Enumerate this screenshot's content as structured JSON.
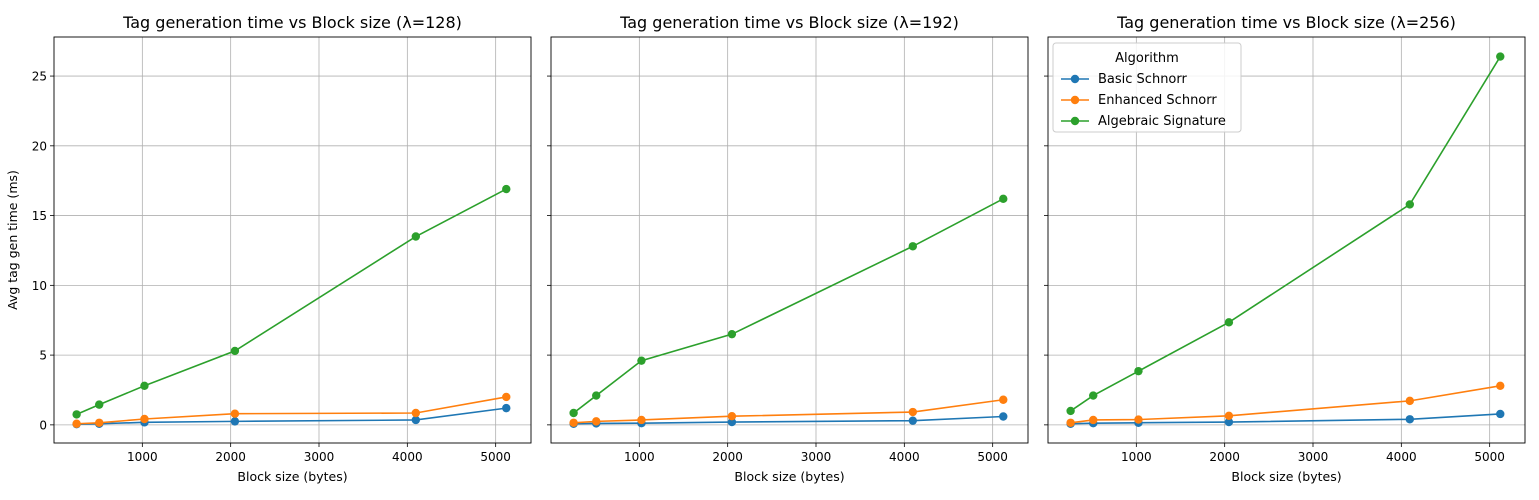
{
  "chart_data": [
    {
      "type": "line",
      "title": "Tag generation time vs Block size (λ=128)",
      "xlabel": "Block size (bytes)",
      "ylabel": "Avg tag gen time (ms)",
      "xlim": [
        0,
        5400
      ],
      "ylim": [
        -1.3,
        27.8
      ],
      "x_ticks": [
        1000,
        2000,
        3000,
        4000,
        5000
      ],
      "y_ticks": [
        0,
        5,
        10,
        15,
        20,
        25
      ],
      "grid": true,
      "x": [
        256,
        512,
        1024,
        2048,
        4096,
        5120
      ],
      "series": [
        {
          "name": "Basic Schnorr",
          "color": "#1f77b4",
          "values": [
            0.05,
            0.08,
            0.18,
            0.25,
            0.35,
            1.2
          ]
        },
        {
          "name": "Enhanced Schnorr",
          "color": "#ff7f0e",
          "values": [
            0.08,
            0.15,
            0.42,
            0.8,
            0.85,
            2.0
          ]
        },
        {
          "name": "Algebraic Signature",
          "color": "#2ca02c",
          "values": [
            0.75,
            1.45,
            2.8,
            5.3,
            13.5,
            16.9
          ]
        }
      ]
    },
    {
      "type": "line",
      "title": "Tag generation time vs Block size (λ=192)",
      "xlabel": "Block size (bytes)",
      "xlim": [
        0,
        5400
      ],
      "ylim": [
        -1.3,
        27.8
      ],
      "x_ticks": [
        1000,
        2000,
        3000,
        4000,
        5000
      ],
      "grid": true,
      "x": [
        256,
        512,
        1024,
        2048,
        4096,
        5120
      ],
      "series": [
        {
          "name": "Basic Schnorr",
          "color": "#1f77b4",
          "values": [
            0.08,
            0.1,
            0.12,
            0.2,
            0.3,
            0.6
          ]
        },
        {
          "name": "Enhanced Schnorr",
          "color": "#ff7f0e",
          "values": [
            0.15,
            0.25,
            0.35,
            0.62,
            0.92,
            1.8
          ]
        },
        {
          "name": "Algebraic Signature",
          "color": "#2ca02c",
          "values": [
            0.85,
            2.1,
            4.6,
            6.5,
            12.8,
            16.2
          ]
        }
      ]
    },
    {
      "type": "line",
      "title": "Tag generation time vs Block size (λ=256)",
      "xlabel": "Block size (bytes)",
      "xlim": [
        0,
        5400
      ],
      "ylim": [
        -1.3,
        27.8
      ],
      "x_ticks": [
        1000,
        2000,
        3000,
        4000,
        5000
      ],
      "grid": true,
      "legend": {
        "title": "Algorithm",
        "placement": "upper-left"
      },
      "x": [
        256,
        512,
        1024,
        2048,
        4096,
        5120
      ],
      "series": [
        {
          "name": "Basic Schnorr",
          "color": "#1f77b4",
          "values": [
            0.08,
            0.12,
            0.15,
            0.2,
            0.4,
            0.78
          ]
        },
        {
          "name": "Enhanced Schnorr",
          "color": "#ff7f0e",
          "values": [
            0.15,
            0.35,
            0.38,
            0.65,
            1.72,
            2.8
          ]
        },
        {
          "name": "Algebraic Signature",
          "color": "#2ca02c",
          "values": [
            1.0,
            2.1,
            3.85,
            7.35,
            15.8,
            26.4
          ]
        }
      ]
    }
  ]
}
